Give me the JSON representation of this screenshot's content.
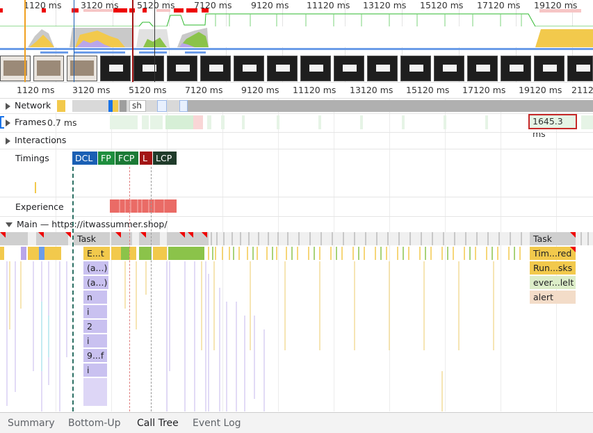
{
  "overview": {
    "ticks": [
      "1120 ms",
      "3120 ms",
      "5120 ms",
      "7120 ms",
      "9120 ms",
      "11120 ms",
      "13120 ms",
      "15120 ms",
      "17120 ms",
      "19120 ms"
    ]
  },
  "ruler": {
    "ticks": [
      "1120 ms",
      "3120 ms",
      "5120 ms",
      "7120 ms",
      "9120 ms",
      "11120 ms",
      "13120 ms",
      "15120 ms",
      "17120 ms",
      "19120 ms",
      "2112"
    ]
  },
  "tracks": {
    "network": "Network",
    "network_item": "sh",
    "frames": "Frames",
    "frames_value": "0.7 ms",
    "frame_selected": "1645.3 ms",
    "interactions": "Interactions",
    "timings": "Timings",
    "experience": "Experience",
    "main": "Main — https://itwassummer.shop/"
  },
  "timings": {
    "dcl": "DCL",
    "fp": "FP",
    "fcp": "FCP",
    "l": "L",
    "lcp": "LCP"
  },
  "flame_left": [
    "Task",
    "E...t",
    "(a...)",
    "(a...)",
    "n",
    "i",
    "2",
    "i",
    "9...f",
    "i"
  ],
  "flame_right": [
    "Task",
    "Tim...red",
    "Run...sks",
    "ever...lelt",
    "alert"
  ],
  "tabs": [
    "Summary",
    "Bottom-Up",
    "Call Tree",
    "Event Log"
  ],
  "colors": {
    "dcl": "#1a5fb4",
    "fp": "#1e8e3e",
    "fcp": "#1b7a36",
    "l": "#a31515",
    "lcp": "#1f3b2a",
    "scripting": "#f2c94c",
    "rendering": "#b9a6ea",
    "painting": "#8bc34a",
    "task": "#c8c8c8",
    "experience": "#ea6b66"
  }
}
